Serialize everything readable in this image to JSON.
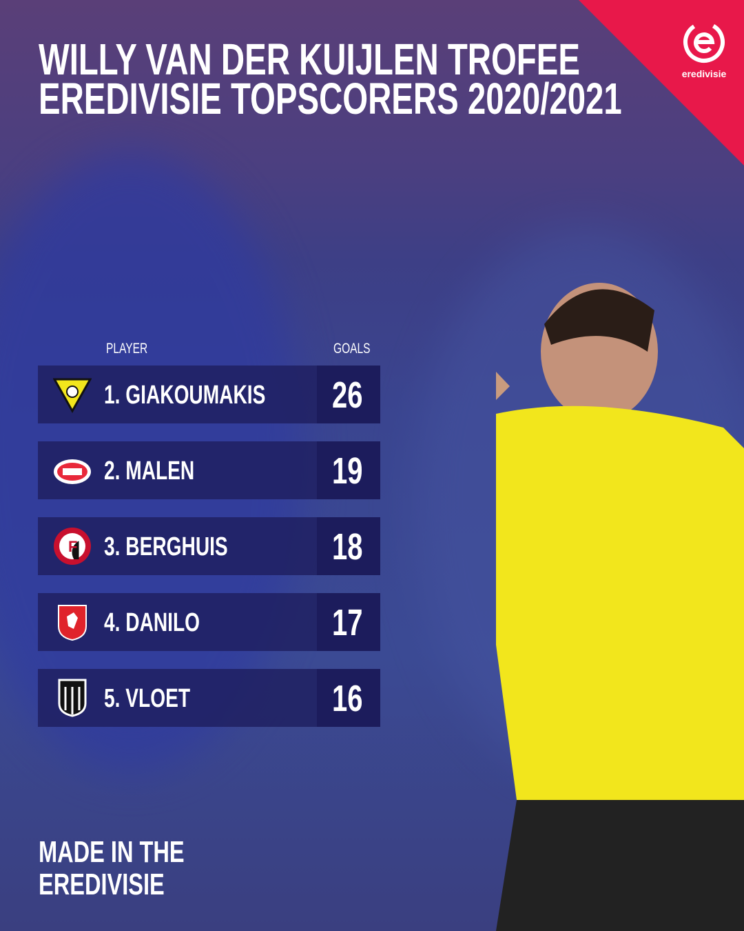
{
  "title": {
    "line1": "WILLY VAN DER KUIJLEN TROFEE",
    "line2": "EREDIVISIE TOPSCORERS 2020/2021"
  },
  "logo": {
    "text": "eredivisie",
    "icon": "eredivisie-e-logo"
  },
  "table": {
    "header_player": "PLAYER",
    "header_goals": "GOALS",
    "rows": [
      {
        "name": "1. GIAKOUMAKIS",
        "goals": "26",
        "club_icon": "vvv-venlo-crest"
      },
      {
        "name": "2. MALEN",
        "goals": "19",
        "club_icon": "psv-crest"
      },
      {
        "name": "3. BERGHUIS",
        "goals": "18",
        "club_icon": "feyenoord-crest"
      },
      {
        "name": "4. DANILO",
        "goals": "17",
        "club_icon": "fc-twente-crest"
      },
      {
        "name": "5. VLOET",
        "goals": "16",
        "club_icon": "heracles-crest"
      }
    ]
  },
  "footer": {
    "line1": "MADE IN THE",
    "line2": "EREDIVISIE"
  },
  "colors": {
    "accent": "#e8184a",
    "row_bg": "#1e1e5f",
    "goals_bg": "#1c1c5c",
    "jersey": "#f2e61c"
  }
}
